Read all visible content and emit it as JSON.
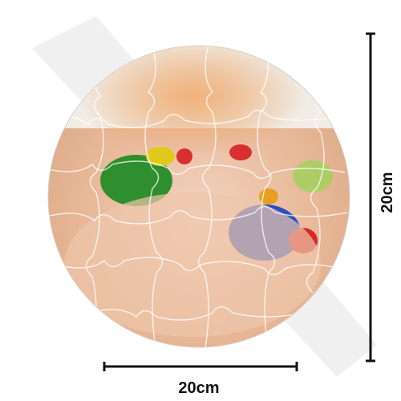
{
  "dimensions": {
    "width_label": "20cm",
    "height_label": "20cm"
  }
}
